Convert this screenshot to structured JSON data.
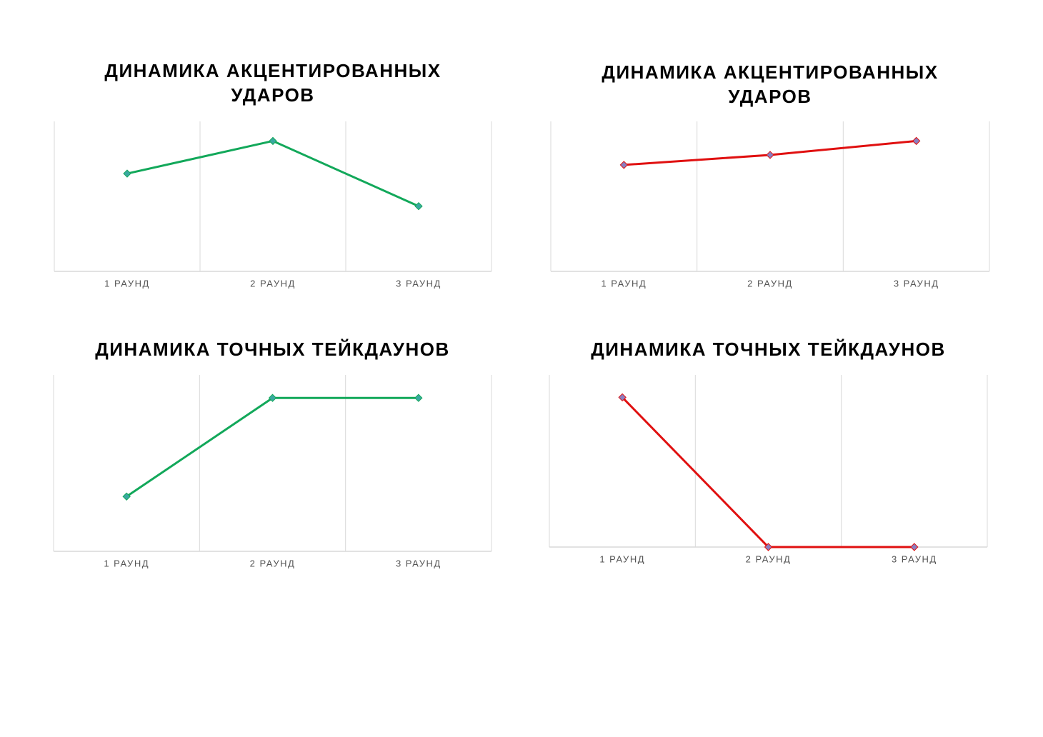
{
  "chart_data": [
    {
      "type": "line",
      "title": "ДИНАМИКА АКЦЕНТИРОВАННЫХ УДАРОВ",
      "categories": [
        "1 РАУНД",
        "2 РАУНД",
        "3 РАУНД"
      ],
      "values": [
        3,
        4,
        2
      ],
      "color": "#12a85a",
      "marker_color": "#3aa8a0"
    },
    {
      "type": "line",
      "title": "ДИНАМИКА АКЦЕНТИРОВАННЫХ УДАРОВ",
      "categories": [
        "1 РАУНД",
        "2 РАУНД",
        "3 РАУНД"
      ],
      "values": [
        8,
        8.75,
        9.8
      ],
      "color": "#e01010",
      "marker_color": "#8a7fc0"
    },
    {
      "type": "line",
      "title": "ДИНАМИКА ТОЧНЫХ ТЕЙКДАУНОВ",
      "categories": [
        "1 РАУНД",
        "2 РАУНД",
        "3 РАУНД"
      ],
      "values": [
        1,
        2.8,
        2.8
      ],
      "color": "#12a85a",
      "marker_color": "#3aa8a0"
    },
    {
      "type": "line",
      "title": "ДИНАМИКА ТОЧНЫХ ТЕЙКДАУНОВ",
      "categories": [
        "1 РАУНД",
        "2 РАУНД",
        "3 РАУНД"
      ],
      "values": [
        1,
        0,
        0
      ],
      "color": "#e01010",
      "marker_color": "#8a7fc0"
    }
  ]
}
